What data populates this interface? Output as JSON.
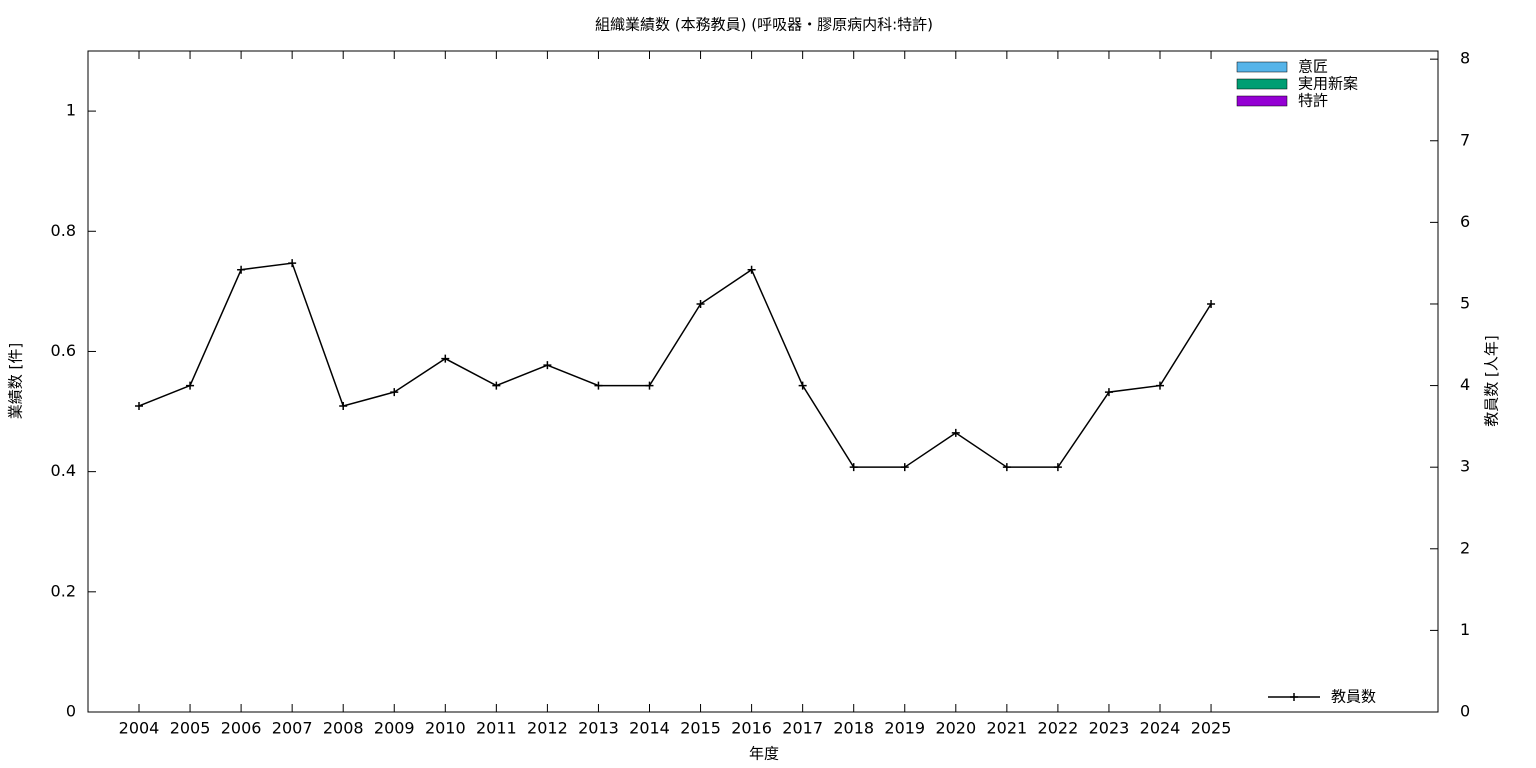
{
  "chart_data": {
    "type": "bar-line",
    "title": "組織業績数 (本務教員) (呼吸器・膠原病内科:特許)",
    "x_label": "年度",
    "y_label": "業績数 [件]",
    "y2_label": "教員数 [人年]",
    "categories": [
      "2004",
      "2005",
      "2006",
      "2007",
      "2008",
      "2009",
      "2010",
      "2011",
      "2012",
      "2013",
      "2014",
      "2015",
      "2016",
      "2017",
      "2018",
      "2019",
      "2020",
      "2021",
      "2022",
      "2023",
      "2024",
      "2025"
    ],
    "ylim": [
      0,
      1.1
    ],
    "yticks": [
      0,
      0.2,
      0.4,
      0.6,
      0.8,
      1
    ],
    "y2lim": [
      0,
      8.1
    ],
    "y2ticks": [
      0,
      1,
      2,
      3,
      4,
      5,
      6,
      7,
      8
    ],
    "series": [
      {
        "name": "意匠",
        "color": "#56b4e9",
        "type": "bar",
        "values": [
          0,
          0,
          0,
          0,
          0,
          0,
          0,
          0,
          0,
          0,
          0,
          0,
          0,
          0,
          0,
          0,
          0,
          0,
          0,
          0,
          0,
          0
        ]
      },
      {
        "name": "実用新案",
        "color": "#009e73",
        "type": "bar",
        "values": [
          0,
          0,
          0,
          0,
          0,
          0,
          0,
          0,
          0,
          0,
          0,
          0,
          0,
          0,
          0,
          0,
          0,
          0,
          0,
          0,
          0,
          0
        ]
      },
      {
        "name": "特許",
        "color": "#9400d3",
        "type": "bar",
        "values": [
          0,
          0,
          0,
          0,
          0,
          0,
          0,
          0,
          0,
          0,
          0,
          0,
          0,
          0,
          0,
          0,
          0,
          0,
          0,
          0,
          0,
          0
        ]
      },
      {
        "name": "教員数",
        "color": "#000000",
        "type": "line",
        "axis": "y2",
        "values": [
          3.75,
          4,
          5.42,
          5.5,
          3.75,
          3.92,
          4.33,
          4,
          4.25,
          4,
          4,
          5,
          5.42,
          4,
          3,
          3,
          3.42,
          3,
          3,
          3.92,
          4,
          5
        ]
      }
    ]
  }
}
